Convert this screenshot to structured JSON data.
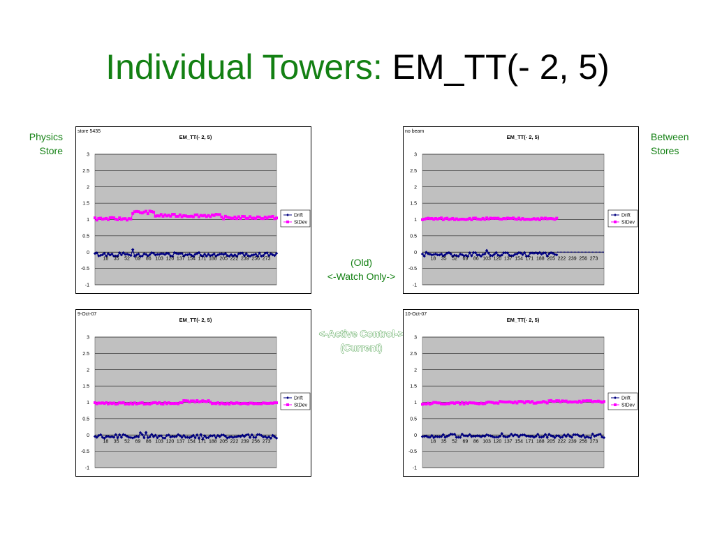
{
  "slide": {
    "title_green": "Individual Towers:",
    "title_black": "EM_TT(- 2, 5)",
    "left_label": [
      "Physics",
      "Store"
    ],
    "right_label": [
      "Between",
      "Stores"
    ],
    "middle_top": [
      "(Old)",
      "<-Watch Only->"
    ],
    "middle_bottom": [
      "<-Active Control->",
      "(Current)"
    ]
  },
  "colors": {
    "title_green": "#138013",
    "plot_bg": "#c0c0c0",
    "drift": "#000080",
    "stdev": "#ff00ff"
  },
  "chart_data": [
    {
      "type": "line",
      "corner_label": "store 5435",
      "title": "EM_TT(- 2, 5)",
      "ylim": [
        -1,
        3
      ],
      "yticks": [
        "3",
        "2.5",
        "2",
        "1.5",
        "1",
        "0.5",
        "0",
        "-0.5",
        "-1"
      ],
      "xticks": [
        "18",
        "35",
        "52",
        "69",
        "86",
        "103",
        "120",
        "137",
        "154",
        "171",
        "188",
        "205",
        "222",
        "239",
        "256",
        "273"
      ],
      "x_range": [
        1,
        289
      ],
      "grid": true,
      "legend": "right",
      "series": [
        {
          "name": "Drift",
          "x_range": [
            1,
            289
          ],
          "mean": -0.07,
          "noise": 0.06
        },
        {
          "name": "StDev",
          "x_range": [
            1,
            289
          ],
          "segments": [
            {
              "x_to": 60,
              "level": 1.02
            },
            {
              "x_to": 95,
              "level": 1.22
            },
            {
              "x_to": 200,
              "level": 1.12
            },
            {
              "x_to": 289,
              "level": 1.06
            }
          ],
          "noise": 0.04
        }
      ]
    },
    {
      "type": "line",
      "corner_label": "no beam",
      "title": "EM_TT(- 2, 5)",
      "ylim": [
        -1,
        3
      ],
      "yticks": [
        "3",
        "2.5",
        "2",
        "1.5",
        "1",
        "0.5",
        "0",
        "-0.5",
        "-1"
      ],
      "xticks": [
        "18",
        "35",
        "52",
        "69",
        "86",
        "103",
        "120",
        "137",
        "154",
        "171",
        "188",
        "205",
        "222",
        "239",
        "256",
        "273"
      ],
      "x_range": [
        1,
        289
      ],
      "grid": true,
      "legend": "right",
      "series": [
        {
          "name": "Drift",
          "x_range": [
            1,
            214
          ],
          "mean": -0.07,
          "noise": 0.06,
          "tail_zero_to": 289
        },
        {
          "name": "StDev",
          "x_range": [
            1,
            214
          ],
          "segments": [
            {
              "x_to": 214,
              "level": 1.02
            }
          ],
          "noise": 0.03
        }
      ]
    },
    {
      "type": "line",
      "corner_label": "9-Oct-07",
      "title": "EM_TT(- 2, 5)",
      "ylim": [
        -1,
        3
      ],
      "yticks": [
        "3",
        "2.5",
        "2",
        "1.5",
        "1",
        "0.5",
        "0",
        "-0.5",
        "-1"
      ],
      "xticks": [
        "18",
        "35",
        "52",
        "69",
        "86",
        "103",
        "120",
        "137",
        "154",
        "171",
        "188",
        "205",
        "222",
        "239",
        "256",
        "273"
      ],
      "x_range": [
        1,
        289
      ],
      "grid": true,
      "legend": "right",
      "series": [
        {
          "name": "Drift",
          "x_range": [
            1,
            289
          ],
          "mean": -0.04,
          "noise": 0.06
        },
        {
          "name": "StDev",
          "x_range": [
            1,
            289
          ],
          "segments": [
            {
              "x_to": 140,
              "level": 0.97
            },
            {
              "x_to": 185,
              "level": 1.03
            },
            {
              "x_to": 289,
              "level": 0.97
            }
          ],
          "noise": 0.025
        }
      ]
    },
    {
      "type": "line",
      "corner_label": "10-Oct-07",
      "title": "EM_TT(- 2, 5)",
      "ylim": [
        -1,
        3
      ],
      "yticks": [
        "3",
        "2.5",
        "2",
        "1.5",
        "1",
        "0.5",
        "0",
        "-0.5",
        "-1"
      ],
      "xticks": [
        "18",
        "35",
        "52",
        "69",
        "86",
        "103",
        "120",
        "137",
        "154",
        "171",
        "188",
        "205",
        "222",
        "239",
        "256",
        "273"
      ],
      "x_range": [
        1,
        289
      ],
      "grid": true,
      "legend": "right",
      "series": [
        {
          "name": "Drift",
          "x_range": [
            1,
            289
          ],
          "mean": -0.03,
          "noise": 0.06
        },
        {
          "name": "StDev",
          "x_range": [
            1,
            289
          ],
          "segments": [
            {
              "x_to": 100,
              "level": 0.97
            },
            {
              "x_to": 200,
              "level": 1.0
            },
            {
              "x_to": 289,
              "level": 1.03
            }
          ],
          "noise": 0.03
        }
      ]
    }
  ]
}
